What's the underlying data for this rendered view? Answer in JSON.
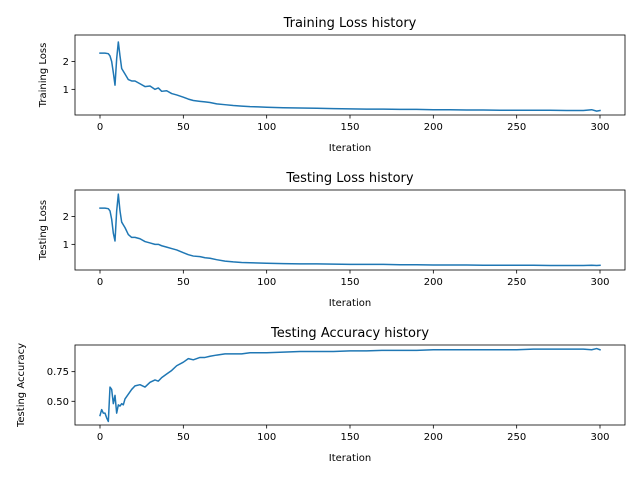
{
  "chart_data": [
    {
      "type": "line",
      "title": "Training Loss history",
      "xlabel": "Iteration",
      "ylabel": "Training Loss",
      "xlim": [
        -15,
        315
      ],
      "ylim": [
        0.08,
        2.95
      ],
      "xticks": [
        0,
        50,
        100,
        150,
        200,
        250,
        300
      ],
      "yticks": [
        1,
        2
      ],
      "color": "#1f77b4",
      "series": [
        {
          "x": [
            0,
            3,
            5,
            6,
            7,
            8,
            9,
            10,
            11,
            12,
            13,
            14,
            15,
            17,
            19,
            21,
            24,
            27,
            30,
            33,
            35,
            37,
            40,
            43,
            46,
            50,
            53,
            56,
            60,
            63,
            66,
            70,
            75,
            80,
            85,
            90,
            95,
            100,
            110,
            120,
            130,
            140,
            150,
            160,
            170,
            180,
            190,
            200,
            210,
            220,
            230,
            240,
            250,
            260,
            270,
            280,
            290,
            295,
            298,
            300
          ],
          "y": [
            2.3,
            2.3,
            2.28,
            2.2,
            2.0,
            1.6,
            1.15,
            2.1,
            2.7,
            2.2,
            1.75,
            1.65,
            1.55,
            1.35,
            1.3,
            1.3,
            1.2,
            1.1,
            1.12,
            1.0,
            1.05,
            0.93,
            0.95,
            0.85,
            0.8,
            0.72,
            0.65,
            0.6,
            0.57,
            0.55,
            0.53,
            0.48,
            0.45,
            0.42,
            0.4,
            0.38,
            0.37,
            0.36,
            0.34,
            0.33,
            0.32,
            0.31,
            0.3,
            0.29,
            0.29,
            0.28,
            0.28,
            0.27,
            0.27,
            0.26,
            0.26,
            0.25,
            0.25,
            0.25,
            0.25,
            0.24,
            0.24,
            0.27,
            0.22,
            0.24
          ]
        }
      ]
    },
    {
      "type": "line",
      "title": "Testing Loss history",
      "xlabel": "Iteration",
      "ylabel": "Testing Loss",
      "xlim": [
        -15,
        315
      ],
      "ylim": [
        0.08,
        2.95
      ],
      "xticks": [
        0,
        50,
        100,
        150,
        200,
        250,
        300
      ],
      "yticks": [
        1,
        2
      ],
      "color": "#1f77b4",
      "series": [
        {
          "x": [
            0,
            3,
            5,
            6,
            7,
            8,
            9,
            10,
            11,
            12,
            13,
            14,
            15,
            17,
            19,
            21,
            24,
            27,
            30,
            33,
            35,
            37,
            40,
            43,
            46,
            50,
            53,
            56,
            60,
            63,
            66,
            70,
            75,
            80,
            85,
            90,
            95,
            100,
            110,
            120,
            130,
            140,
            150,
            160,
            170,
            180,
            190,
            200,
            210,
            220,
            230,
            240,
            250,
            260,
            270,
            280,
            290,
            295,
            298,
            300
          ],
          "y": [
            2.3,
            2.3,
            2.28,
            2.2,
            1.9,
            1.4,
            1.12,
            2.2,
            2.8,
            2.2,
            1.8,
            1.7,
            1.6,
            1.35,
            1.25,
            1.25,
            1.2,
            1.1,
            1.05,
            1.0,
            1.0,
            0.95,
            0.9,
            0.85,
            0.8,
            0.7,
            0.63,
            0.58,
            0.56,
            0.52,
            0.5,
            0.45,
            0.4,
            0.37,
            0.35,
            0.34,
            0.33,
            0.32,
            0.31,
            0.3,
            0.3,
            0.29,
            0.28,
            0.28,
            0.28,
            0.27,
            0.27,
            0.26,
            0.26,
            0.26,
            0.25,
            0.25,
            0.25,
            0.25,
            0.24,
            0.24,
            0.24,
            0.25,
            0.24,
            0.25
          ]
        }
      ]
    },
    {
      "type": "line",
      "title": "Testing Accuracy history",
      "xlabel": "Iteration",
      "ylabel": "Testing Accuracy",
      "xlim": [
        -15,
        315
      ],
      "ylim": [
        0.3,
        0.975
      ],
      "xticks": [
        0,
        50,
        100,
        150,
        200,
        250,
        300
      ],
      "yticks": [
        0.5,
        0.75
      ],
      "ytick_labels": [
        "0.50",
        "0.75"
      ],
      "color": "#1f77b4",
      "series": [
        {
          "x": [
            0,
            1,
            2,
            3,
            4,
            5,
            6,
            7,
            8,
            9,
            10,
            11,
            12,
            13,
            14,
            15,
            17,
            19,
            21,
            24,
            27,
            30,
            33,
            35,
            37,
            40,
            43,
            46,
            50,
            53,
            56,
            60,
            63,
            66,
            70,
            75,
            80,
            85,
            90,
            95,
            100,
            110,
            120,
            130,
            140,
            150,
            160,
            170,
            180,
            190,
            200,
            210,
            220,
            230,
            240,
            250,
            260,
            270,
            280,
            290,
            295,
            298,
            300
          ],
          "y": [
            0.38,
            0.43,
            0.4,
            0.4,
            0.36,
            0.33,
            0.62,
            0.6,
            0.48,
            0.55,
            0.4,
            0.47,
            0.46,
            0.48,
            0.47,
            0.52,
            0.56,
            0.6,
            0.63,
            0.64,
            0.62,
            0.66,
            0.68,
            0.67,
            0.7,
            0.73,
            0.76,
            0.8,
            0.83,
            0.86,
            0.85,
            0.87,
            0.87,
            0.88,
            0.89,
            0.9,
            0.9,
            0.9,
            0.91,
            0.91,
            0.91,
            0.915,
            0.92,
            0.92,
            0.92,
            0.925,
            0.925,
            0.93,
            0.93,
            0.93,
            0.935,
            0.935,
            0.935,
            0.935,
            0.935,
            0.935,
            0.94,
            0.94,
            0.94,
            0.94,
            0.935,
            0.945,
            0.935
          ]
        }
      ]
    }
  ]
}
